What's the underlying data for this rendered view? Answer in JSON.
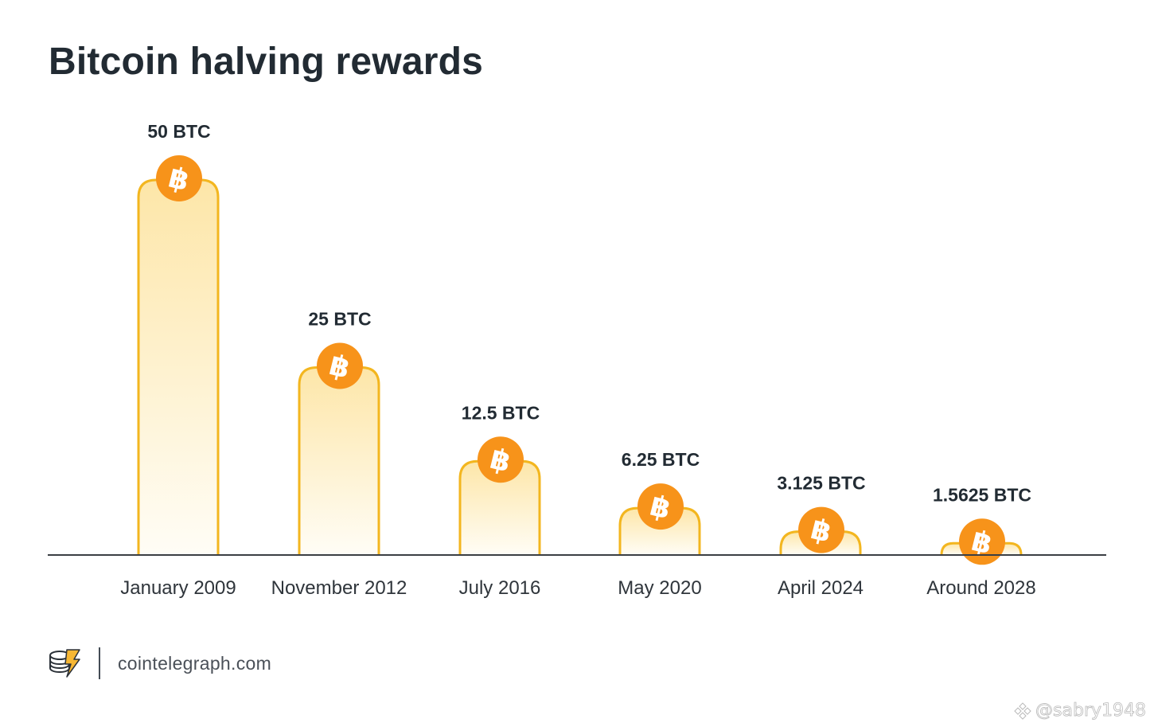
{
  "chart_data": {
    "type": "bar",
    "title": "Bitcoin halving rewards",
    "categories": [
      "January 2009",
      "November 2012",
      "July 2016",
      "May 2020",
      "April 2024",
      "Around 2028"
    ],
    "values": [
      50,
      25,
      12.5,
      6.25,
      3.125,
      1.5625
    ],
    "value_labels": [
      "50 BTC",
      "25 BTC",
      "12.5 BTC",
      "6.25 BTC",
      "3.125 BTC",
      "1.5625 BTC"
    ],
    "ylim": [
      0,
      50
    ],
    "xlabel": "",
    "ylabel": "",
    "grid": false,
    "colors": {
      "bar_stroke": "#f3b61f",
      "bar_fill_top": "#fde6a8",
      "bar_fill_bottom": "#fffdf6",
      "coin": "#f7931a",
      "axis": "#3b3f44",
      "label_text": "#222b33"
    },
    "bar_icon": "bitcoin-icon"
  },
  "footer": {
    "logo_icon": "cointelegraph-logo-icon",
    "site": "cointelegraph.com"
  },
  "watermark": {
    "icon": "binance-square-icon",
    "handle": "@sabry1948"
  }
}
